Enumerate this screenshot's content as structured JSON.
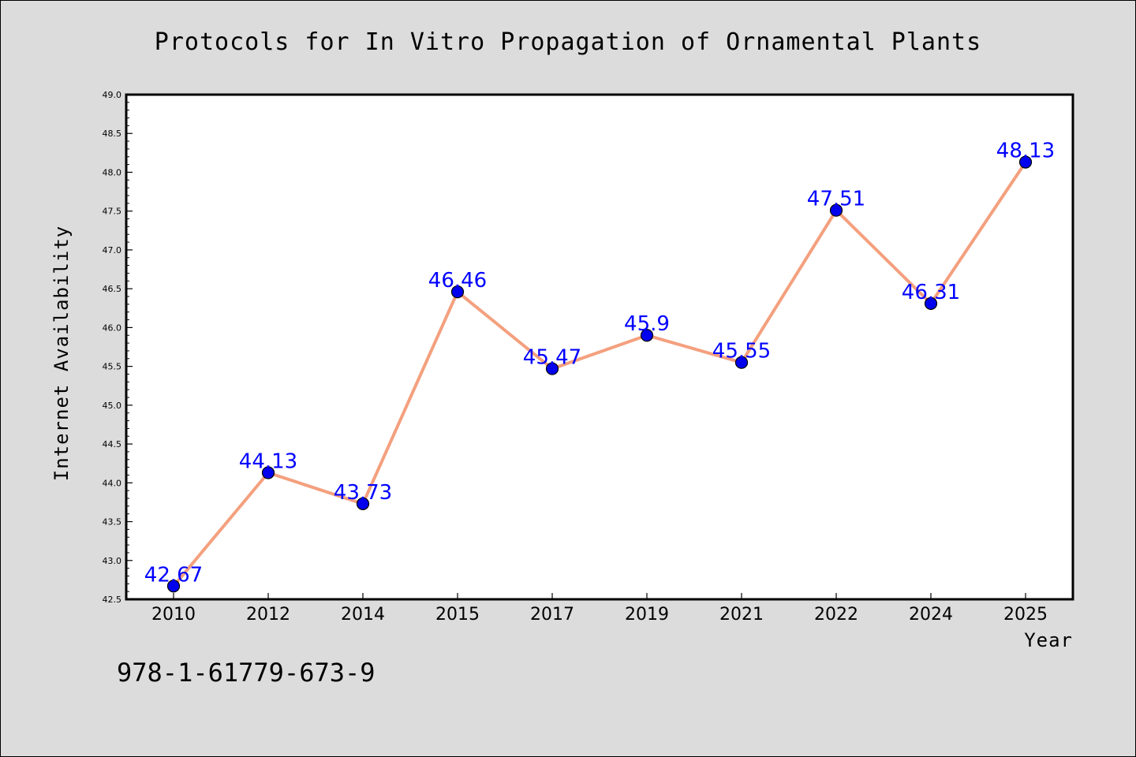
{
  "chart_data": {
    "type": "line",
    "title": "Protocols for In Vitro Propagation of Ornamental Plants",
    "xlabel": "Year",
    "ylabel": "Internet Availability",
    "categories": [
      "2010",
      "2012",
      "2014",
      "2015",
      "2017",
      "2019",
      "2021",
      "2022",
      "2024",
      "2025"
    ],
    "series": [
      {
        "values": [
          42.67,
          44.13,
          43.73,
          46.46,
          45.47,
          45.9,
          45.55,
          47.51,
          46.31,
          48.13
        ],
        "labels": [
          "42.67",
          "44.13",
          "43.73",
          "46.46",
          "45.47",
          "45.9",
          "45.55",
          "47.51",
          "46.31",
          "48.13"
        ]
      }
    ],
    "ylim": [
      42.5,
      49.0
    ],
    "yticks": [
      "42.5",
      "43.0",
      "43.5",
      "44.0",
      "44.5",
      "45.0",
      "45.5",
      "46.0",
      "46.5",
      "47.0",
      "47.5",
      "48.0",
      "48.5",
      "49.0"
    ],
    "grid": false,
    "legend": "none",
    "colors": {
      "line": "#f4a07e",
      "marker": "#0000ee",
      "label": "#0000ff",
      "background": "#dcdcdc",
      "plot_background": "#ffffff"
    }
  },
  "footer": {
    "isbn": "978-1-61779-673-9"
  }
}
